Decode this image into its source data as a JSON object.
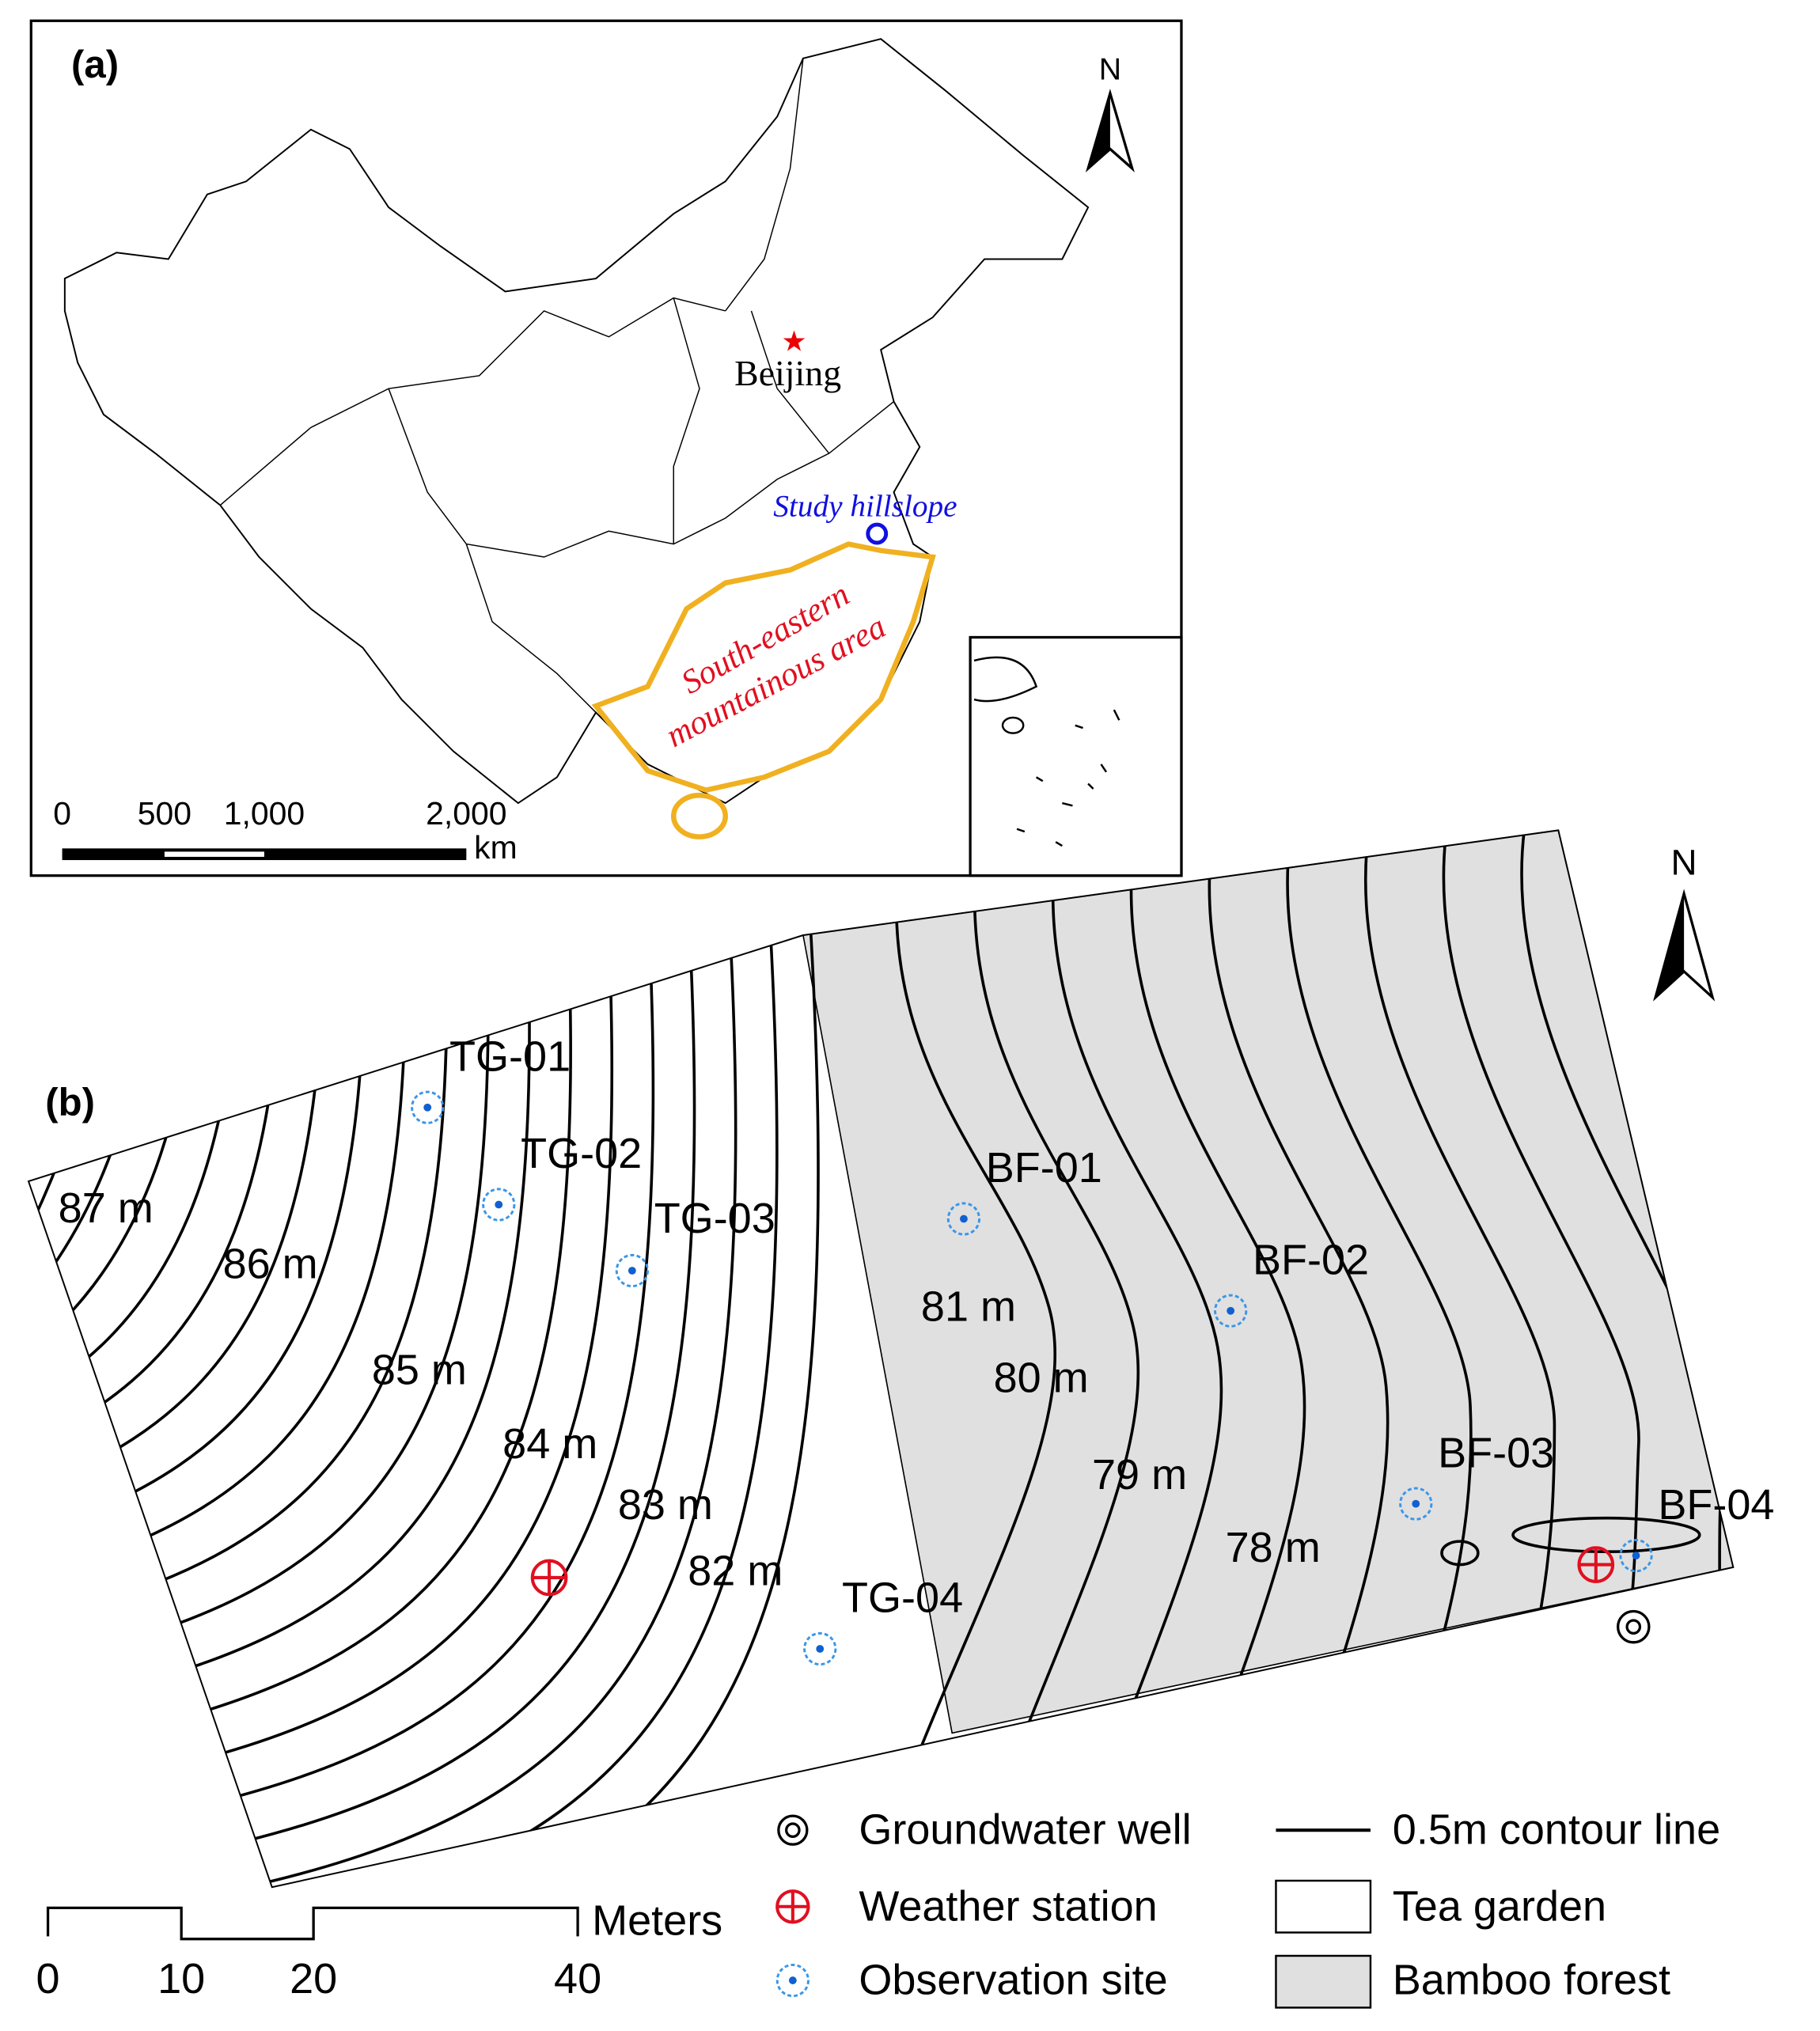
{
  "panel_a": {
    "label": "(a)",
    "north": "N",
    "capital": "Beijing",
    "site": "Study hillslope",
    "region_line1": "South-eastern",
    "region_line2": "mountainous area",
    "scale_labels": [
      "0",
      "500",
      "1,000",
      "2,000"
    ],
    "scale_unit": "km"
  },
  "panel_b": {
    "label": "(b)",
    "north": "N",
    "sites": [
      "TG-01",
      "TG-02",
      "TG-03",
      "TG-04",
      "BF-01",
      "BF-02",
      "BF-03",
      "BF-04"
    ],
    "contour_labels": [
      "87 m",
      "86 m",
      "85 m",
      "84 m",
      "83 m",
      "82 m",
      "81 m",
      "80 m",
      "79 m",
      "78 m"
    ],
    "scale_labels": [
      "0",
      "10",
      "20",
      "40"
    ],
    "scale_unit": "Meters"
  },
  "legend": {
    "well": "Groundwater well",
    "weather": "Weather station",
    "observation": "Observation site",
    "contour": "0.5m contour line",
    "tea": "Tea garden",
    "bamboo": "Bamboo forest"
  }
}
